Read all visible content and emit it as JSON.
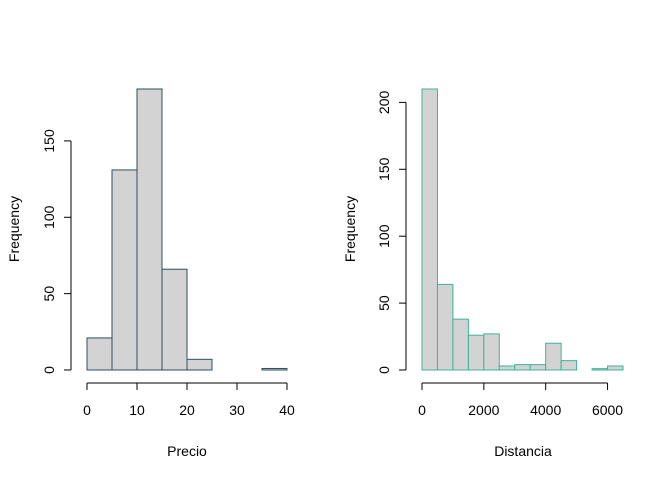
{
  "chart_data": [
    {
      "type": "bar",
      "title": "",
      "xlabel": "Precio",
      "ylabel": "Frequency",
      "bin_edges": [
        0,
        5,
        10,
        15,
        20,
        25,
        30,
        35,
        40
      ],
      "values": [
        21,
        131,
        184,
        66,
        7,
        0,
        0,
        1
      ],
      "x_ticks": [
        "0",
        "10",
        "20",
        "30",
        "40"
      ],
      "y_ticks": [
        "0",
        "50",
        "100",
        "150"
      ],
      "xlim": [
        0,
        40
      ],
      "ylim": [
        0,
        184
      ],
      "grid": false,
      "bar_fill": "#d3d3d3",
      "bar_border": "#2f4f5f"
    },
    {
      "type": "bar",
      "title": "",
      "xlabel": "Distancia",
      "ylabel": "Frequency",
      "bin_edges": [
        0,
        500,
        1000,
        1500,
        2000,
        2500,
        3000,
        3500,
        4000,
        4500,
        5000,
        5500,
        6000,
        6500
      ],
      "values": [
        210,
        64,
        38,
        26,
        27,
        3,
        4,
        4,
        20,
        7,
        0,
        1,
        3
      ],
      "x_ticks": [
        "0",
        "2000",
        "4000",
        "6000"
      ],
      "y_ticks": [
        "0",
        "50",
        "100",
        "150",
        "200"
      ],
      "xlim": [
        0,
        6500
      ],
      "ylim": [
        0,
        210
      ],
      "grid": false,
      "bar_fill": "#d3d3d3",
      "bar_border": "#3cb39a"
    }
  ]
}
